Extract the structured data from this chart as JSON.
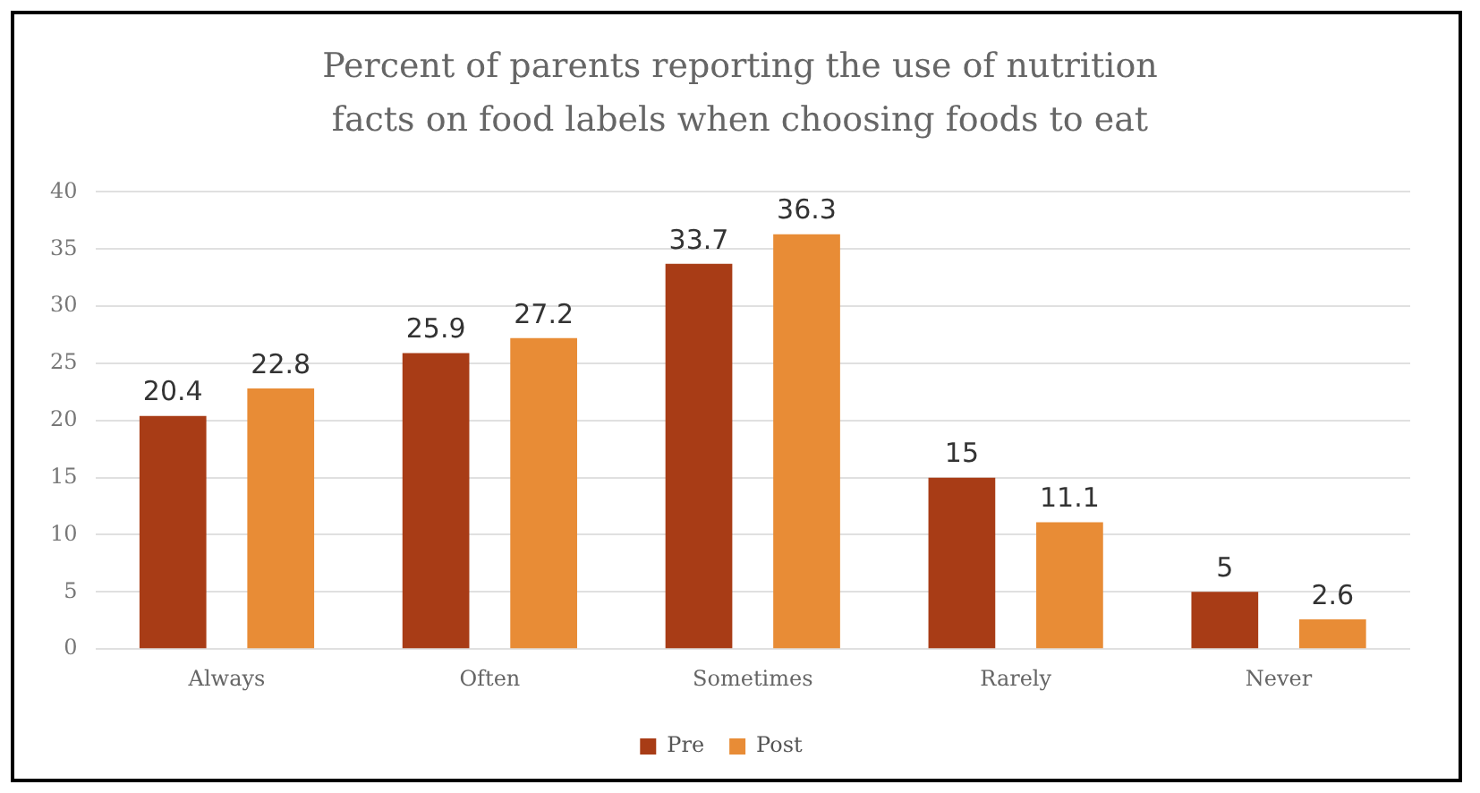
{
  "chart_data": {
    "type": "bar",
    "title": "Percent of parents reporting the use of nutrition facts on food labels when choosing foods to eat",
    "categories": [
      "Always",
      "Often",
      "Sometimes",
      "Rarely",
      "Never"
    ],
    "series": [
      {
        "name": "Pre",
        "color": "#a83c16",
        "values": [
          20.4,
          25.9,
          33.7,
          15,
          5
        ]
      },
      {
        "name": "Post",
        "color": "#e88c36",
        "values": [
          22.8,
          27.2,
          36.3,
          11.1,
          2.6
        ]
      }
    ],
    "ylim": [
      0,
      40
    ],
    "yticks": [
      0,
      5,
      10,
      15,
      20,
      25,
      30,
      35,
      40
    ],
    "grid": "y",
    "legend": "bottom",
    "data_labels": true
  }
}
